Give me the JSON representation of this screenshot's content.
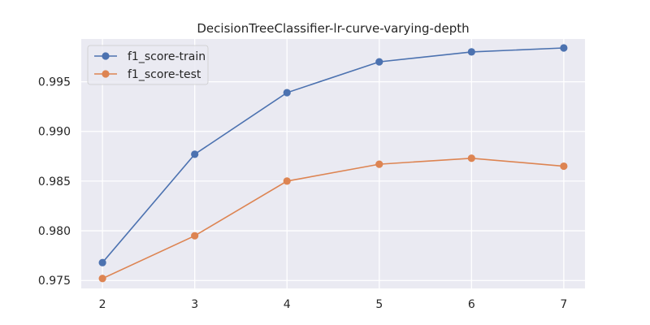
{
  "chart_data": {
    "type": "line",
    "title": "DecisionTreeClassifier-lr-curve-varying-depth",
    "xlabel": "",
    "ylabel": "",
    "x": [
      2,
      3,
      4,
      5,
      6,
      7
    ],
    "xticks": [
      "2",
      "3",
      "4",
      "5",
      "6",
      "7"
    ],
    "yticks": [
      "0.975",
      "0.980",
      "0.985",
      "0.990",
      "0.995"
    ],
    "xlim": [
      1.77,
      7.23
    ],
    "ylim": [
      0.9742,
      0.9993
    ],
    "grid": true,
    "legend_position": "upper-left",
    "series": [
      {
        "name": "f1_score-train",
        "color": "#4C72B0",
        "marker": "circle",
        "values": [
          0.9768,
          0.9877,
          0.9939,
          0.997,
          0.998,
          0.9984
        ]
      },
      {
        "name": "f1_score-test",
        "color": "#DD8452",
        "marker": "circle",
        "values": [
          0.9752,
          0.9795,
          0.985,
          0.9867,
          0.9873,
          0.9865
        ]
      }
    ],
    "colors": {
      "plot_background": "#EAEAF2",
      "grid": "#FFFFFF",
      "text": "#262626"
    }
  }
}
